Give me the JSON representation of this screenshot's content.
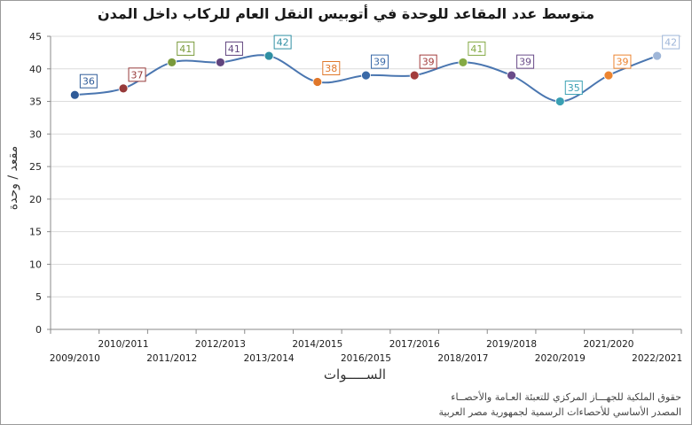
{
  "chart_data": {
    "type": "line",
    "title": "متوسط عدد المقاعد للوحدة في أتوبيس النقل العام للركاب داخل المدن",
    "xlabel": "الســـــوات",
    "ylabel": "مقعد / وحدة",
    "ylim": [
      0,
      45
    ],
    "yticks": [
      0,
      5,
      10,
      15,
      20,
      25,
      30,
      35,
      40,
      45
    ],
    "grid": true,
    "legend": "none",
    "categories": [
      "2009/2010",
      "2010/2011",
      "2011/2012",
      "2012/2013",
      "2013/2014",
      "2014/2015",
      "2015/2016",
      "2016/2017",
      "2017/2018",
      "2018/2019",
      "2019/2020",
      "2020/2021",
      "2021/2022"
    ],
    "tick_labels": [
      "2009/2010",
      "2010/2011",
      "2011/2012",
      "2012/2013",
      "2013/2014",
      "2014/2015",
      "2016/2015",
      "2017/2016",
      "2018/2017",
      "2019/2018",
      "2020/2019",
      "2021/2020",
      "2022/2021"
    ],
    "series": [
      {
        "values": [
          36,
          37,
          41,
          41,
          42,
          38,
          39,
          39,
          41,
          39,
          35,
          39,
          42
        ]
      }
    ],
    "point_colors": [
      "#2f5b98",
      "#973a3a",
      "#7a9a3c",
      "#61457f",
      "#2f8fa3",
      "#e0772a",
      "#3a6aa8",
      "#a33c3c",
      "#84aa45",
      "#6a4c8a",
      "#39a0b3",
      "#ec8430",
      "#9fb6d8"
    ],
    "line_color": "#4a76b0"
  },
  "footer": {
    "rights": "حقوق الملكية للجهـــاز المركزي للتعبئة العـامة والأحصــاء",
    "source": "المصدر الأساسي للأحصاءات الرسمية لجمهورية مصر العربية"
  }
}
